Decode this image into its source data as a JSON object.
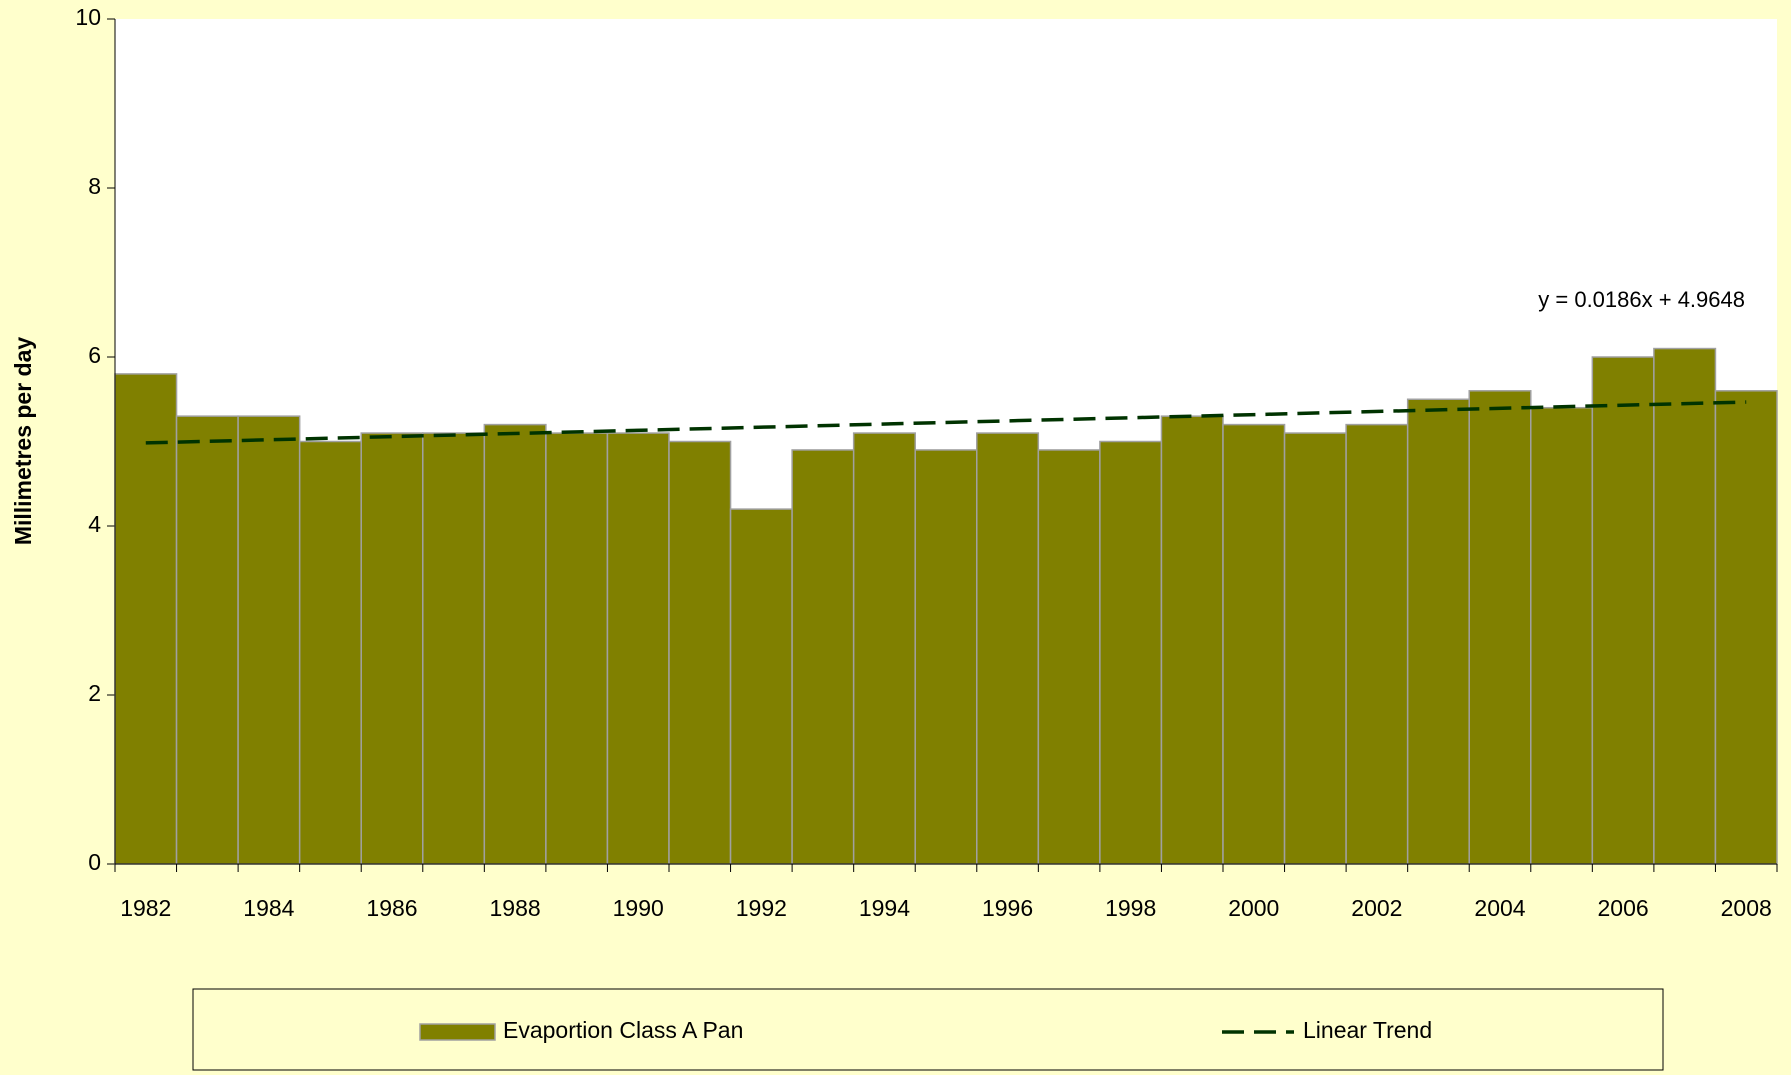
{
  "chart_data": {
    "type": "bar",
    "y_label": "Millimetres per day",
    "categories": [
      "1982",
      null,
      "1984",
      null,
      "1986",
      null,
      "1988",
      null,
      "1990",
      null,
      "1992",
      null,
      "1994",
      null,
      "1996",
      null,
      "1998",
      null,
      "2000",
      null,
      "2002",
      null,
      "2004",
      null,
      "2006",
      null,
      "2008"
    ],
    "series": [
      {
        "name": "Evaportion Class A Pan",
        "color": "#808000",
        "values": [
          5.8,
          5.3,
          5.3,
          5.0,
          5.1,
          5.1,
          5.2,
          5.1,
          5.1,
          5.0,
          4.2,
          4.9,
          5.1,
          4.9,
          5.1,
          4.9,
          5.0,
          5.3,
          5.2,
          5.1,
          5.2,
          5.5,
          5.6,
          5.4,
          6.0,
          6.1,
          5.6
        ]
      }
    ],
    "trend": {
      "name": "Linear Trend",
      "color": "#003300",
      "slope": 0.0186,
      "intercept": 4.9648,
      "equation": "y = 0.0186x + 4.9648",
      "equation_color": "#808000"
    },
    "ylim": [
      0,
      10
    ],
    "yticks": [
      0,
      2,
      4,
      6,
      8,
      10
    ]
  }
}
